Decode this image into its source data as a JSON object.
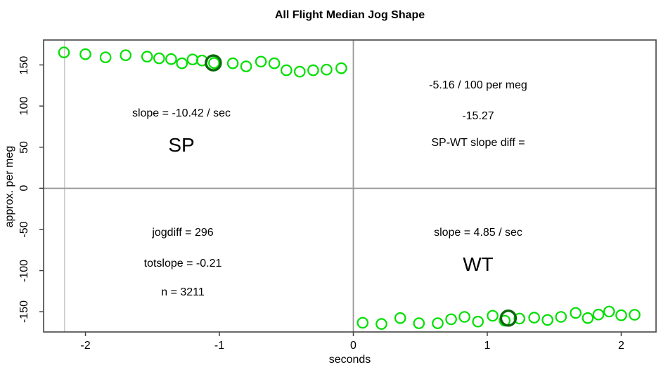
{
  "figure": {
    "title": "All Flight Median Jog Shape",
    "xlabel": "seconds",
    "ylabel": "approx. per meg"
  },
  "axes": {
    "x_tick_labels": [
      "-2",
      "-1",
      "0",
      "1",
      "2"
    ],
    "y_tick_labels": [
      "-150",
      "-100",
      "-50",
      "0",
      "50",
      "100",
      "150"
    ]
  },
  "annotations": {
    "sp_slope": "slope = -10.42 / sec",
    "sp_label": "SP",
    "diff_line1": "-5.16 / 100 per meg",
    "diff_line2": "-15.27",
    "diff_line3": "SP-WT slope diff =",
    "jogdiff": "jogdiff = 296",
    "totslope": "totslope = -0.21",
    "n": "n = 3211",
    "wt_slope": "slope = 4.85 / sec",
    "wt_label": "WT"
  },
  "colors": {
    "point_green": "#00DF00",
    "highlight_dark_green": "#0A680A",
    "crosshair_gray": "#999999",
    "start_line_gray": "#C8C8C8",
    "box_color": "#444444",
    "text_black": "#000000"
  },
  "chart_data": {
    "type": "scatter",
    "title": "All Flight Median Jog Shape",
    "xlabel": "seconds",
    "ylabel": "approx. per meg",
    "xlim": [
      -2.3125,
      2.26
    ],
    "ylim": [
      -174.6,
      180.3
    ],
    "x_ticks": [
      -2,
      -1,
      0,
      1,
      2
    ],
    "y_ticks": [
      -150,
      -100,
      -50,
      0,
      50,
      100,
      150
    ],
    "grid": false,
    "marker": "open-circle",
    "reference_lines": [
      {
        "name": "trace-start-line",
        "x": -2.156,
        "color": "#C8C8C8",
        "width": 1.5
      },
      {
        "name": "zero-x-line",
        "x": 0,
        "color": "#999999",
        "width": 1.8
      },
      {
        "name": "zero-y-line",
        "y": 0,
        "color": "#999999",
        "width": 1.8
      }
    ],
    "series": [
      {
        "name": "SP",
        "color": "#00DF00",
        "x": [
          -2.16,
          -2.0,
          -1.85,
          -1.7,
          -1.54,
          -1.45,
          -1.36,
          -1.28,
          -1.2,
          -1.13,
          -1.04,
          -0.9,
          -0.8,
          -0.69,
          -0.59,
          -0.5,
          -0.4,
          -0.3,
          -0.2,
          -0.09
        ],
        "y": [
          165.2,
          163.1,
          159.2,
          161.8,
          160.1,
          158.0,
          157.1,
          152.0,
          156.7,
          155.4,
          152.4,
          152.0,
          148.2,
          154.0,
          152.0,
          143.5,
          141.8,
          143.5,
          144.3,
          146.0
        ]
      },
      {
        "name": "WT",
        "color": "#00DF00",
        "x": [
          0.07,
          0.21,
          0.35,
          0.49,
          0.63,
          0.73,
          0.83,
          0.93,
          1.04,
          1.13,
          1.24,
          1.35,
          1.45,
          1.55,
          1.66,
          1.75,
          1.83,
          1.91,
          2.0,
          2.1
        ],
        "y": [
          -163.4,
          -164.9,
          -157.7,
          -164.0,
          -164.0,
          -159.2,
          -156.3,
          -162.0,
          -154.9,
          -160.9,
          -158.3,
          -157.2,
          -160.0,
          -156.3,
          -151.5,
          -157.7,
          -153.4,
          -149.8,
          -154.3,
          -153.7
        ]
      }
    ],
    "highlighted_points": [
      {
        "series": "SP",
        "x": -1.045,
        "y": 152.5,
        "color": "#0A680A"
      },
      {
        "series": "WT",
        "x": 1.157,
        "y": -157.8,
        "color": "#0A680A"
      }
    ]
  }
}
